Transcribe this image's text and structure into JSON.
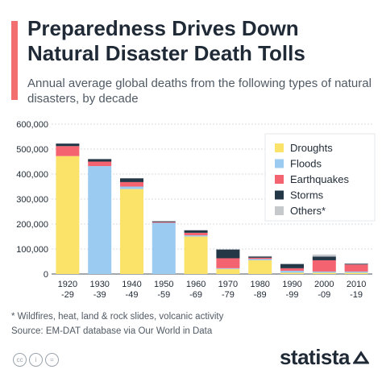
{
  "header": {
    "title": "Preparedness Drives Down Natural Disaster Death Tolls",
    "subtitle": "Annual average global deaths from the following types of natural disasters, by decade"
  },
  "footer": {
    "note": "* Wildfires, heat, land & rock slides, volcanic activity",
    "source": "Source: EM-DAT database via Our World in Data",
    "license_icons": [
      "cc-icon",
      "by-icon",
      "equals-icon"
    ],
    "brand": "statista"
  },
  "chart_data": {
    "type": "bar",
    "stacked": true,
    "categories": [
      [
        "1920",
        "-29"
      ],
      [
        "1930",
        "-39"
      ],
      [
        "1940",
        "-49"
      ],
      [
        "1950",
        "-59"
      ],
      [
        "1960",
        "-69"
      ],
      [
        "1970",
        "-79"
      ],
      [
        "1980",
        "-89"
      ],
      [
        "1990",
        "-99"
      ],
      [
        "2000",
        "-09"
      ],
      [
        "2010",
        "-19"
      ]
    ],
    "series": [
      {
        "name": "Droughts",
        "color": "#fbe36a",
        "values": [
          472000,
          0,
          340000,
          0,
          150000,
          20000,
          55000,
          5000,
          5000,
          5000
        ]
      },
      {
        "name": "Floods",
        "color": "#9ccbf1",
        "values": [
          0,
          432000,
          10000,
          205000,
          5000,
          3000,
          5000,
          8000,
          5000,
          5000
        ]
      },
      {
        "name": "Earthquakes",
        "color": "#f36470",
        "values": [
          40000,
          18000,
          18000,
          3000,
          10000,
          40000,
          5000,
          10000,
          45000,
          28000
        ]
      },
      {
        "name": "Storms",
        "color": "#243747",
        "values": [
          10000,
          10000,
          15000,
          3000,
          10000,
          35000,
          5000,
          17000,
          15000,
          3000
        ]
      },
      {
        "name": "Others*",
        "color": "#c5c9cc",
        "values": [
          0,
          0,
          0,
          0,
          0,
          0,
          2000,
          0,
          8000,
          2000
        ]
      }
    ],
    "yticks": [
      "0",
      "100,000",
      "200,000",
      "300,000",
      "400,000",
      "500,000",
      "600,000"
    ],
    "ylim": [
      0,
      600000
    ],
    "grid": true,
    "legend_position": "top-right"
  }
}
